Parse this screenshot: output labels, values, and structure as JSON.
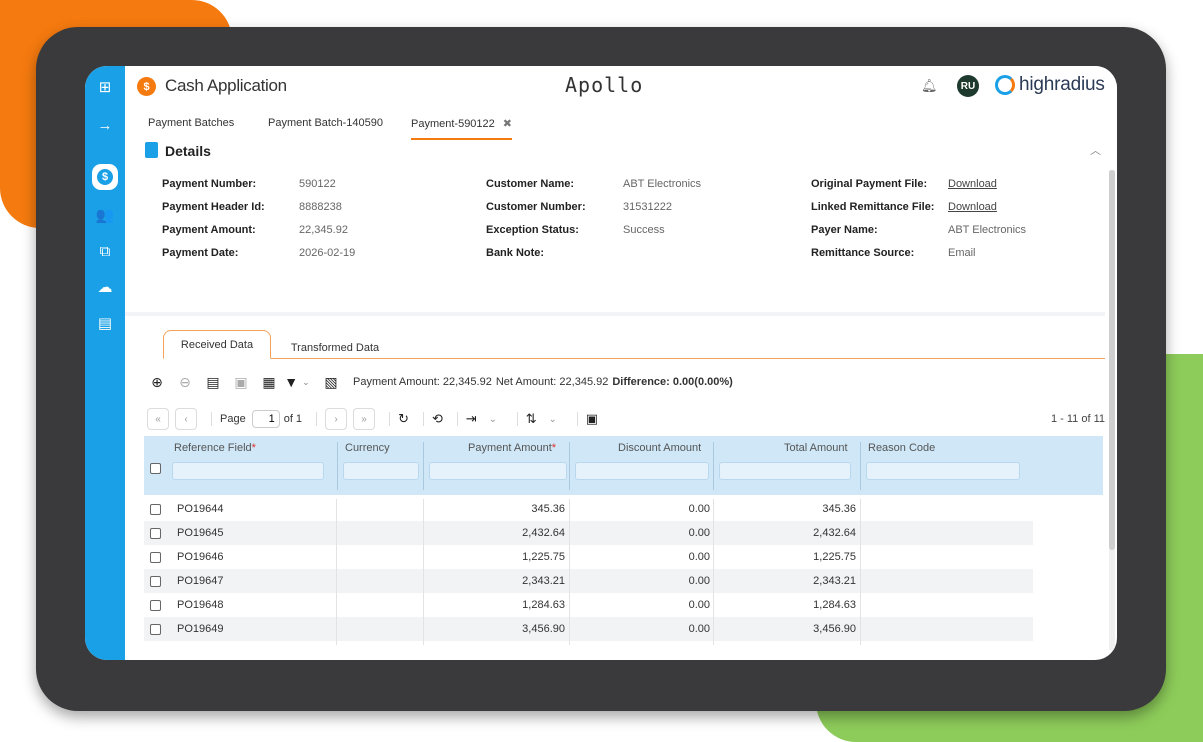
{
  "header": {
    "app_title": "Cash Application",
    "brand": "Apollo",
    "avatar_initials": "RU",
    "company": "highradius"
  },
  "tabs": [
    "Payment Batches",
    "Payment Batch-140590",
    "Payment-590122"
  ],
  "details": {
    "title": "Details",
    "col1": [
      {
        "label": "Payment Number:",
        "value": "590122"
      },
      {
        "label": "Payment Header Id:",
        "value": "8888238"
      },
      {
        "label": "Payment Amount:",
        "value": "22,345.92"
      },
      {
        "label": "Payment Date:",
        "value": "2026-02-19"
      }
    ],
    "col2": [
      {
        "label": "Customer Name:",
        "value": "ABT Electronics"
      },
      {
        "label": "Customer Number:",
        "value": "31531222"
      },
      {
        "label": "Exception Status:",
        "value": "Success"
      },
      {
        "label": "Bank Note:",
        "value": ""
      }
    ],
    "col3": [
      {
        "label": "Original Payment File:",
        "value": "Download"
      },
      {
        "label": "Linked Remittance File:",
        "value": "Download"
      },
      {
        "label": "Payer Name:",
        "value": "ABT Electronics"
      },
      {
        "label": "Remittance Source:",
        "value": "Email"
      }
    ]
  },
  "data_tabs": [
    "Received Data",
    "Transformed Data"
  ],
  "summary": {
    "payment": "Payment Amount: 22,345.92",
    "net": "Net Amount: 22,345.92",
    "difference": "Difference: 0.00(0.00%)"
  },
  "pager": {
    "page_label": "Page",
    "page_value": "1",
    "of_label": "of 1",
    "range": "1 - 11 of 11"
  },
  "grid": {
    "columns": [
      "Reference Field",
      "Currency",
      "Payment Amount",
      "Discount Amount",
      "Total Amount",
      "Reason Code"
    ],
    "rows": [
      {
        "ref": "PO19644",
        "currency": "",
        "payment": "345.36",
        "discount": "0.00",
        "total": "345.36",
        "reason": ""
      },
      {
        "ref": "PO19645",
        "currency": "",
        "payment": "2,432.64",
        "discount": "0.00",
        "total": "2,432.64",
        "reason": ""
      },
      {
        "ref": "PO19646",
        "currency": "",
        "payment": "1,225.75",
        "discount": "0.00",
        "total": "1,225.75",
        "reason": ""
      },
      {
        "ref": "PO19647",
        "currency": "",
        "payment": "2,343.21",
        "discount": "0.00",
        "total": "2,343.21",
        "reason": ""
      },
      {
        "ref": "PO19648",
        "currency": "",
        "payment": "1,284.63",
        "discount": "0.00",
        "total": "1,284.63",
        "reason": ""
      },
      {
        "ref": "PO19649",
        "currency": "",
        "payment": "3,456.90",
        "discount": "0.00",
        "total": "3,456.90",
        "reason": ""
      }
    ]
  }
}
